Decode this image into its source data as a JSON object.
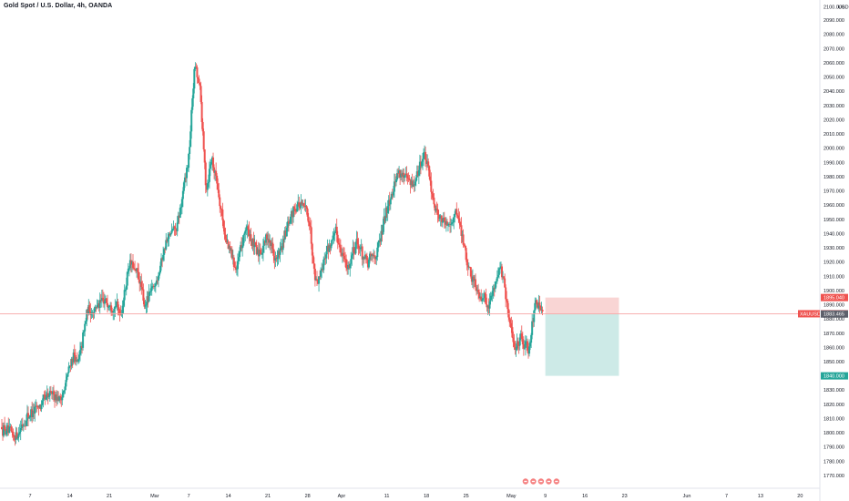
{
  "header": {
    "title": "Gold Spot / U.S. Dollar, 4h, OANDA"
  },
  "currency": "USD",
  "colors": {
    "up": "#26a69a",
    "down": "#ef5350",
    "price_line": "#f7a5a5",
    "stop_zone": "#f8d0cf",
    "target_zone": "#c8e8e4",
    "stop_tag": "#ef5350",
    "symbol_tag": "#ef5350",
    "current_tag": "#5d606b",
    "target_tag": "#26a69a"
  },
  "chart_data": {
    "type": "candlestick",
    "symbol": "XAUUSD",
    "timeframe": "4h",
    "y_axis": {
      "range": [
        1765,
        2100
      ],
      "ticks": [
        1770,
        1780,
        1790,
        1800,
        1810,
        1820,
        1830,
        1840,
        1850,
        1860,
        1870,
        1880,
        1890,
        1900,
        1910,
        1920,
        1930,
        1940,
        1950,
        1960,
        1970,
        1980,
        1990,
        2000,
        2010,
        2020,
        2030,
        2040,
        2050,
        2060,
        2070,
        2080,
        2090
      ],
      "tick_labels": [
        "1770.000",
        "1780.000",
        "1790.000",
        "1800.000",
        "1810.000",
        "1820.000",
        "1830.000",
        "1840.000",
        "1850.000",
        "1860.000",
        "1870.000",
        "1880.000",
        "1890.000",
        "1900.000",
        "1910.000",
        "1920.000",
        "1930.000",
        "1940.000",
        "1950.000",
        "1960.000",
        "1970.000",
        "1980.000",
        "1990.000",
        "2000.000",
        "2010.000",
        "2020.000",
        "2030.000",
        "2040.000",
        "2050.000",
        "2060.000",
        "2070.000",
        "2080.000",
        "2090.000"
      ],
      "top_label": "2100.000"
    },
    "x_axis": {
      "ticks": [
        "7",
        "14",
        "21",
        "Mar",
        "7",
        "14",
        "21",
        "28",
        "Apr",
        "11",
        "18",
        "25",
        "May",
        "9",
        "16",
        "23",
        "Jun",
        "7",
        "13",
        "20"
      ],
      "tick_days": [
        7,
        14,
        21,
        29,
        35,
        42,
        49,
        56,
        62,
        70,
        77,
        84,
        92,
        98,
        105,
        112,
        123,
        130,
        136,
        143
      ],
      "day_range": [
        2,
        146
      ]
    },
    "anchors": [
      [
        2.0,
        1804
      ],
      [
        4.0,
        1796
      ],
      [
        6.5,
        1812
      ],
      [
        9.0,
        1820
      ],
      [
        11.0,
        1828
      ],
      [
        12.5,
        1824
      ],
      [
        14.5,
        1855
      ],
      [
        15.5,
        1848
      ],
      [
        17.0,
        1885
      ],
      [
        19.0,
        1890
      ],
      [
        21.0,
        1893
      ],
      [
        23.0,
        1885
      ],
      [
        24.5,
        1920
      ],
      [
        26.5,
        1905
      ],
      [
        27.0,
        1888
      ],
      [
        29.0,
        1905
      ],
      [
        31.0,
        1935
      ],
      [
        33.0,
        1945
      ],
      [
        35.0,
        1995
      ],
      [
        36.0,
        2060
      ],
      [
        37.0,
        2040
      ],
      [
        38.0,
        1970
      ],
      [
        39.0,
        1995
      ],
      [
        40.0,
        1975
      ],
      [
        41.5,
        1935
      ],
      [
        43.5,
        1915
      ],
      [
        45.0,
        1945
      ],
      [
        47.0,
        1925
      ],
      [
        49.0,
        1938
      ],
      [
        50.5,
        1920
      ],
      [
        52.5,
        1945
      ],
      [
        54.0,
        1962
      ],
      [
        56.0,
        1955
      ],
      [
        57.5,
        1905
      ],
      [
        59.5,
        1930
      ],
      [
        61.0,
        1940
      ],
      [
        63.0,
        1915
      ],
      [
        64.5,
        1935
      ],
      [
        66.5,
        1918
      ],
      [
        68.5,
        1930
      ],
      [
        70.0,
        1960
      ],
      [
        72.0,
        1985
      ],
      [
        74.5,
        1972
      ],
      [
        76.5,
        1997
      ],
      [
        78.5,
        1958
      ],
      [
        80.5,
        1945
      ],
      [
        82.5,
        1955
      ],
      [
        84.0,
        1920
      ],
      [
        86.0,
        1900
      ],
      [
        88.0,
        1890
      ],
      [
        90.0,
        1920
      ],
      [
        91.5,
        1880
      ],
      [
        92.5,
        1858
      ],
      [
        93.5,
        1868
      ],
      [
        95.0,
        1860
      ],
      [
        96.0,
        1888
      ],
      [
        96.5,
        1890
      ],
      [
        97.5,
        1882
      ]
    ],
    "last_candle_day": 97.5,
    "current_price": 1883.645,
    "position": {
      "type": "short",
      "entry": 1883.465,
      "stop": 1895.04,
      "target": 1840.0,
      "start_day": 98,
      "end_day": 111
    },
    "price_tags": [
      {
        "label": "",
        "value": "1895.040",
        "price": 1895.04,
        "color_key": "stop_tag"
      },
      {
        "label": "XAUUSD",
        "value": "1883.645",
        "price": 1883.645,
        "color_key": "symbol_tag"
      },
      {
        "label": "",
        "value": "1883.465",
        "price": 1883.465,
        "color_key": "current_tag"
      },
      {
        "label": "",
        "value": "1840.000",
        "price": 1840.0,
        "color_key": "target_tag"
      }
    ],
    "event_markers": [
      "event-flag",
      "event-flag",
      "event-flag",
      "event-flag",
      "event-flag"
    ]
  }
}
